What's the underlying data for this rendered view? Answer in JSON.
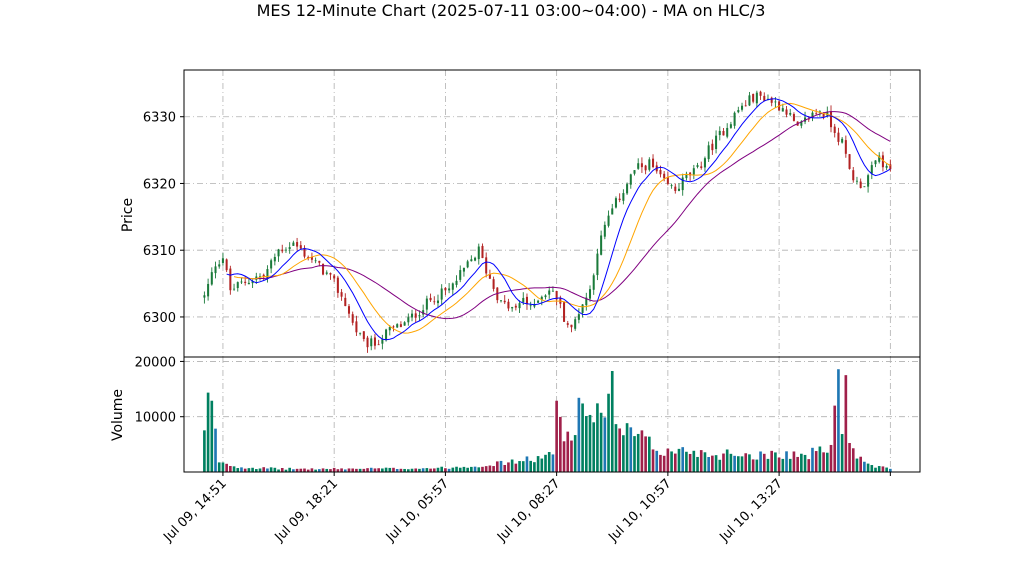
{
  "chart_data": {
    "type": "candlestick",
    "title": "MES 12-Minute Chart (2025-07-11 03:00~04:00) - MA on HLC/3",
    "price_panel": {
      "ylabel": "Price",
      "ylim": [
        6294,
        6337
      ],
      "yticks": [
        6300,
        6310,
        6320,
        6330
      ],
      "grid": true
    },
    "volume_panel": {
      "ylabel": "Volume",
      "ylim": [
        0,
        20800
      ],
      "yticks": [
        10000,
        20000
      ],
      "grid": true
    },
    "x_axis": {
      "ticks": [
        {
          "label": "Jul 09, 14:51",
          "index": 5
        },
        {
          "label": "Jul 09, 18:21",
          "index": 35
        },
        {
          "label": "Jul 10, 05:57",
          "index": 65
        },
        {
          "label": "Jul 10, 08:27",
          "index": 95
        },
        {
          "label": "Jul 10, 10:57",
          "index": 125
        },
        {
          "label": "Jul 10, 13:27",
          "index": 155
        },
        {
          "label": "",
          "index": 185
        }
      ],
      "xlim": [
        -5.5,
        193
      ]
    },
    "colors": {
      "up": "#1a7a3a",
      "down": "#b22222",
      "ma_fast": "#0000ff",
      "ma_mid": "#ffa500",
      "ma_slow": "#800080",
      "vol_up": "#008060",
      "vol_down": "#a0204a",
      "vol_neutral": "#1f77b4"
    },
    "close_anchors": [
      [
        0,
        6303
      ],
      [
        3,
        6308
      ],
      [
        5,
        6309
      ],
      [
        7,
        6304
      ],
      [
        10,
        6305
      ],
      [
        14,
        6306
      ],
      [
        16,
        6306
      ],
      [
        20,
        6310
      ],
      [
        24,
        6311
      ],
      [
        28,
        6309
      ],
      [
        32,
        6307
      ],
      [
        35,
        6305
      ],
      [
        38,
        6302
      ],
      [
        40,
        6299
      ],
      [
        43,
        6296
      ],
      [
        46,
        6296
      ],
      [
        50,
        6298
      ],
      [
        54,
        6299
      ],
      [
        58,
        6301
      ],
      [
        62,
        6303
      ],
      [
        66,
        6304
      ],
      [
        70,
        6307
      ],
      [
        74,
        6310
      ],
      [
        76,
        6307
      ],
      [
        80,
        6302
      ],
      [
        84,
        6301
      ],
      [
        86,
        6303
      ],
      [
        88,
        6301
      ],
      [
        90,
        6303
      ],
      [
        93,
        6304
      ],
      [
        95,
        6303
      ],
      [
        97,
        6300
      ],
      [
        99,
        6298
      ],
      [
        101,
        6301
      ],
      [
        104,
        6304
      ],
      [
        106,
        6310
      ],
      [
        109,
        6315
      ],
      [
        112,
        6318
      ],
      [
        116,
        6322
      ],
      [
        120,
        6323
      ],
      [
        124,
        6320
      ],
      [
        127,
        6319
      ],
      [
        130,
        6321
      ],
      [
        133,
        6322
      ],
      [
        136,
        6325
      ],
      [
        140,
        6328
      ],
      [
        144,
        6331
      ],
      [
        148,
        6333
      ],
      [
        151,
        6333
      ],
      [
        154,
        6332
      ],
      [
        157,
        6331
      ],
      [
        160,
        6328
      ],
      [
        163,
        6330
      ],
      [
        166,
        6331
      ],
      [
        168,
        6330
      ],
      [
        170,
        6328
      ],
      [
        172,
        6326
      ],
      [
        174,
        6322
      ],
      [
        176,
        6320
      ],
      [
        178,
        6320
      ],
      [
        180,
        6322
      ],
      [
        182,
        6324
      ],
      [
        184,
        6322
      ],
      [
        185,
        6322
      ]
    ],
    "volume_anchors": [
      [
        0,
        6800
      ],
      [
        1,
        12000
      ],
      [
        2,
        12300
      ],
      [
        3,
        6500
      ],
      [
        4,
        2000
      ],
      [
        6,
        1600
      ],
      [
        8,
        1000
      ],
      [
        12,
        800
      ],
      [
        20,
        600
      ],
      [
        30,
        550
      ],
      [
        40,
        600
      ],
      [
        55,
        650
      ],
      [
        65,
        750
      ],
      [
        75,
        1200
      ],
      [
        85,
        2000
      ],
      [
        90,
        2500
      ],
      [
        94,
        3000
      ],
      [
        95,
        12800
      ],
      [
        96,
        9500
      ],
      [
        97,
        6000
      ],
      [
        100,
        9000
      ],
      [
        102,
        12800
      ],
      [
        104,
        10000
      ],
      [
        106,
        11500
      ],
      [
        108,
        8000
      ],
      [
        110,
        14800
      ],
      [
        112,
        7000
      ],
      [
        114,
        7000
      ],
      [
        118,
        6000
      ],
      [
        122,
        4000
      ],
      [
        126,
        3500
      ],
      [
        130,
        4000
      ],
      [
        134,
        3500
      ],
      [
        138,
        3000
      ],
      [
        142,
        3500
      ],
      [
        146,
        3200
      ],
      [
        150,
        3000
      ],
      [
        154,
        3500
      ],
      [
        158,
        3200
      ],
      [
        162,
        3000
      ],
      [
        166,
        3800
      ],
      [
        169,
        4500
      ],
      [
        170,
        10800
      ],
      [
        171,
        19500
      ],
      [
        172,
        9500
      ],
      [
        173,
        14000
      ],
      [
        174,
        6500
      ],
      [
        176,
        3000
      ],
      [
        178,
        1500
      ],
      [
        181,
        900
      ],
      [
        185,
        700
      ]
    ],
    "n_bars": 186
  }
}
